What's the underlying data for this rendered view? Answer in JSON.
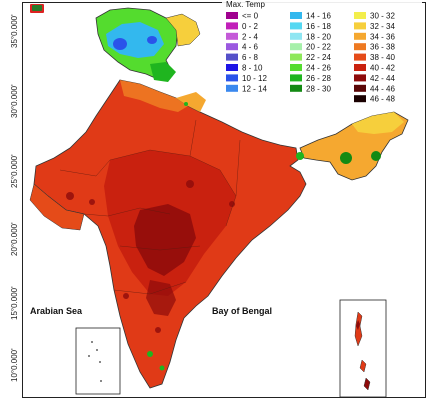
{
  "legend": {
    "title": "Max. Temp",
    "items": [
      {
        "label": "<= 0",
        "color": "#a0008f"
      },
      {
        "label": "0 - 2",
        "color": "#c11fb9"
      },
      {
        "label": "2 - 4",
        "color": "#c45ad8"
      },
      {
        "label": "4 - 6",
        "color": "#9b59e0"
      },
      {
        "label": "6 - 8",
        "color": "#5550c9"
      },
      {
        "label": "8 - 10",
        "color": "#1d14e6"
      },
      {
        "label": "10 - 12",
        "color": "#2a53ea"
      },
      {
        "label": "12 - 14",
        "color": "#3a88ee"
      },
      {
        "label": "14 - 16",
        "color": "#33b8ee"
      },
      {
        "label": "16 - 18",
        "color": "#55d8f2"
      },
      {
        "label": "18 - 20",
        "color": "#8fe6f2"
      },
      {
        "label": "20 - 22",
        "color": "#a6f0aa"
      },
      {
        "label": "22 - 24",
        "color": "#8ee85a"
      },
      {
        "label": "24 - 26",
        "color": "#54dc2e"
      },
      {
        "label": "26 - 28",
        "color": "#1fb51f"
      },
      {
        "label": "28 - 30",
        "color": "#138a13"
      },
      {
        "label": "30 - 32",
        "color": "#f3ee4c"
      },
      {
        "label": "32 - 34",
        "color": "#f6cf3c"
      },
      {
        "label": "34 - 36",
        "color": "#f5a830"
      },
      {
        "label": "36 - 38",
        "color": "#ee7a22"
      },
      {
        "label": "38 - 40",
        "color": "#e54b19"
      },
      {
        "label": "40 - 42",
        "color": "#c9210f"
      },
      {
        "label": "42 - 44",
        "color": "#8e0b0b"
      },
      {
        "label": "44 - 46",
        "color": "#5a0606"
      },
      {
        "label": "46 - 48",
        "color": "#1a0000"
      }
    ]
  },
  "latitude_labels": [
    "35°0.000'",
    "30°0.000'",
    "25°0.000'",
    "20°0.000'",
    "15°0.000'",
    "10°0.000'"
  ],
  "seas": {
    "arabian": "Arabian Sea",
    "bengal": "Bay of Bengal"
  },
  "colors": {
    "base": "#e03a17",
    "hot": "#c9210f",
    "hotter": "#8e0b0b",
    "north_green": "#54dc2e",
    "north_cool": "#33b8ee",
    "north_cold": "#2a53ea",
    "ne_yellow": "#f6cf3c",
    "ne_orange": "#f5a830",
    "outline": "#333333"
  }
}
